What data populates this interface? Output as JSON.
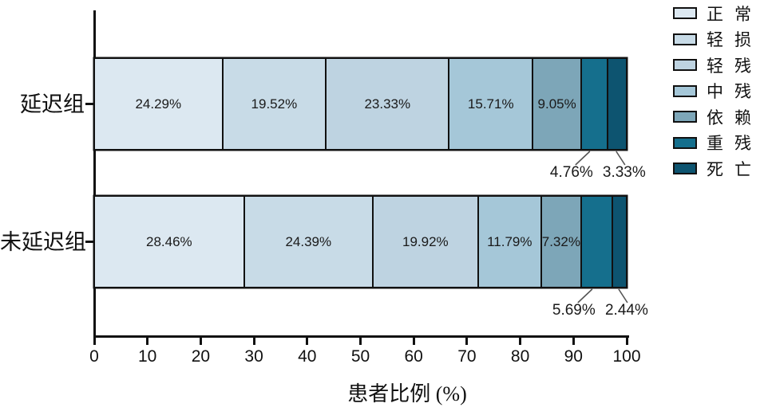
{
  "chart_data": {
    "type": "bar",
    "variant": "horizontal-stacked",
    "title": "",
    "xlabel": "患者比例 (%)",
    "xlim": [
      0,
      100
    ],
    "x_ticks": [
      0,
      10,
      20,
      30,
      40,
      50,
      60,
      70,
      80,
      90,
      100
    ],
    "categories": [
      "延迟组",
      "未延迟组"
    ],
    "series": [
      {
        "name": "正常",
        "color": "#dce8f1",
        "values": [
          24.29,
          28.46
        ],
        "label_position": "inside"
      },
      {
        "name": "轻损",
        "color": "#c8dbe7",
        "values": [
          19.52,
          24.39
        ],
        "label_position": "inside"
      },
      {
        "name": "轻残",
        "color": "#bed3e1",
        "values": [
          23.33,
          19.92
        ],
        "label_position": "inside"
      },
      {
        "name": "中残",
        "color": "#a5c7d8",
        "values": [
          15.71,
          11.79
        ],
        "label_position": "inside"
      },
      {
        "name": "依赖",
        "color": "#7da6b8",
        "values": [
          9.05,
          7.32
        ],
        "label_position": "inside"
      },
      {
        "name": "重残",
        "color": "#156f8d",
        "values": [
          4.76,
          5.69
        ],
        "label_position": "below"
      },
      {
        "name": "死亡",
        "color": "#0d5470",
        "values": [
          3.33,
          2.44
        ],
        "label_position": "below"
      }
    ],
    "value_label_suffix": "%",
    "grid": false,
    "legend_position": "right",
    "background_color": "#ffffff",
    "axis_color": "#111111",
    "leader_line_color": "#555555"
  }
}
